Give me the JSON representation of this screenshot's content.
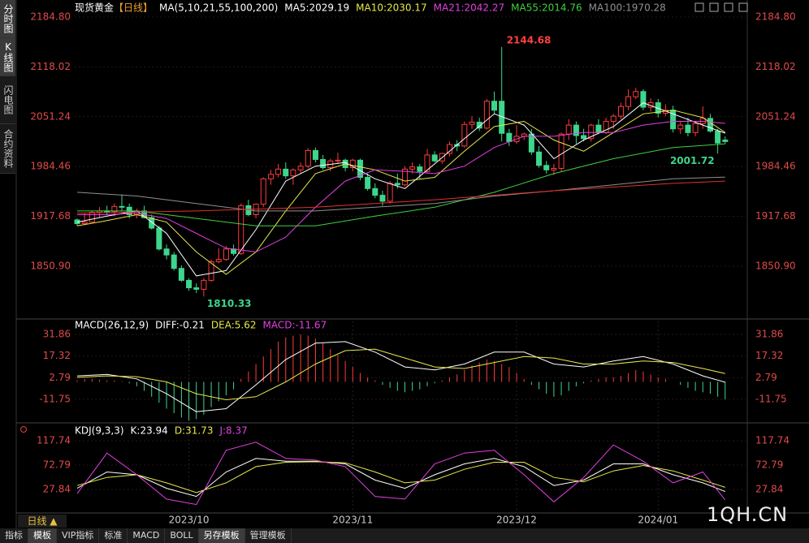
{
  "sidebar": [
    "分时图",
    "K线图",
    "闪电图",
    "合约资料"
  ],
  "toolbar": [
    "指标",
    "模板",
    "VIP指标",
    "标准",
    "MACD",
    "BOLL",
    "另存模板",
    "管理模板"
  ],
  "period_tab": "日线 ▲",
  "watermark": "1QH.CN",
  "chart_data": [
    {
      "type": "candlestick",
      "title": "现货黄金",
      "period": "【日线】",
      "indicator": "MA(5,10,21,55,100,200)",
      "up_color": "#ff3b3b",
      "down_color": "#3dd68c",
      "ylim": [
        1781.3,
        2202.2
      ],
      "yticks": [
        {
          "value": 2184.8,
          "label": "2184.80"
        },
        2118.02,
        2051.24,
        1984.46,
        1917.68,
        {
          "value": 1850.9,
          "label": "1850.90"
        }
      ],
      "x_labels": [
        {
          "index": 15,
          "label": "2023/10"
        },
        {
          "index": 37,
          "label": "2023/11"
        },
        {
          "index": 59,
          "label": "2023/12"
        },
        {
          "index": 78,
          "label": "2024/01"
        }
      ],
      "candles": [
        [
          1913,
          1915,
          1905,
          1908
        ],
        [
          1908,
          1922,
          1906,
          1910
        ],
        [
          1910,
          1925,
          1908,
          1923
        ],
        [
          1923,
          1930,
          1916,
          1925
        ],
        [
          1925,
          1932,
          1920,
          1924
        ],
        [
          1924,
          1935,
          1918,
          1931
        ],
        [
          1931,
          1947,
          1925,
          1930
        ],
        [
          1930,
          1935,
          1915,
          1920
        ],
        [
          1920,
          1928,
          1915,
          1925
        ],
        [
          1925,
          1932,
          1915,
          1916
        ],
        [
          1916,
          1920,
          1900,
          1902
        ],
        [
          1902,
          1905,
          1872,
          1874
        ],
        [
          1874,
          1880,
          1860,
          1866
        ],
        [
          1866,
          1870,
          1845,
          1848
        ],
        [
          1848,
          1852,
          1830,
          1832
        ],
        [
          1832,
          1835,
          1818,
          1822
        ],
        [
          1822,
          1828,
          1815,
          1820
        ],
        [
          1820,
          1835,
          1810.33,
          1832
        ],
        [
          1832,
          1860,
          1830,
          1857
        ],
        [
          1857,
          1875,
          1855,
          1860
        ],
        [
          1860,
          1878,
          1858,
          1874
        ],
        [
          1874,
          1880,
          1865,
          1868
        ],
        [
          1868,
          1935,
          1866,
          1932
        ],
        [
          1932,
          1940,
          1918,
          1920
        ],
        [
          1920,
          1935,
          1915,
          1934
        ],
        [
          1934,
          1970,
          1930,
          1968
        ],
        [
          1968,
          1980,
          1960,
          1974
        ],
        [
          1974,
          1988,
          1970,
          1981
        ],
        [
          1981,
          1990,
          1968,
          1972
        ],
        [
          1972,
          1982,
          1960,
          1980
        ],
        [
          1980,
          1990,
          1975,
          1985
        ],
        [
          1985,
          2009,
          1982,
          2006
        ],
        [
          2006,
          2010,
          1990,
          1994
        ],
        [
          1994,
          2000,
          1980,
          1983
        ],
        [
          1983,
          1995,
          1978,
          1992
        ],
        [
          1992,
          2003,
          1988,
          1993
        ],
        [
          1993,
          1995,
          1978,
          1983
        ],
        [
          1983,
          1995,
          1978,
          1993
        ],
        [
          1993,
          1995,
          1966,
          1970
        ],
        [
          1970,
          1975,
          1952,
          1955
        ],
        [
          1955,
          1962,
          1942,
          1946
        ],
        [
          1946,
          1952,
          1932,
          1938
        ],
        [
          1938,
          1965,
          1935,
          1962
        ],
        [
          1962,
          1975,
          1955,
          1960
        ],
        [
          1960,
          1985,
          1958,
          1981
        ],
        [
          1981,
          1990,
          1975,
          1984
        ],
        [
          1984,
          1988,
          1968,
          1978
        ],
        [
          1978,
          2008,
          1976,
          2000
        ],
        [
          2000,
          2005,
          1990,
          1992
        ],
        [
          1992,
          2003,
          1988,
          2002
        ],
        [
          2002,
          2018,
          1998,
          2014
        ],
        [
          2014,
          2020,
          2005,
          2012
        ],
        [
          2012,
          2045,
          2010,
          2041
        ],
        [
          2041,
          2052,
          2035,
          2044
        ],
        [
          2044,
          2050,
          2032,
          2036
        ],
        [
          2036,
          2075,
          2034,
          2072
        ],
        [
          2072,
          2085,
          2055,
          2060
        ],
        [
          2072,
          2144.68,
          2018,
          2029
        ],
        [
          2029,
          2035,
          2012,
          2018
        ],
        [
          2018,
          2040,
          2015,
          2025
        ],
        [
          2025,
          2030,
          2020,
          2028
        ],
        [
          2028,
          2035,
          2000,
          2004
        ],
        [
          2004,
          2012,
          1983,
          1986
        ],
        [
          1986,
          1992,
          1975,
          1980
        ],
        [
          1980,
          1988,
          1973,
          1982
        ],
        [
          1982,
          2030,
          1978,
          2028
        ],
        [
          2028,
          2048,
          2020,
          2040
        ],
        [
          2040,
          2045,
          2015,
          2026
        ],
        [
          2026,
          2035,
          2018,
          2022
        ],
        [
          2022,
          2042,
          2018,
          2040
        ],
        [
          2040,
          2048,
          2028,
          2030
        ],
        [
          2030,
          2050,
          2028,
          2045
        ],
        [
          2045,
          2055,
          2035,
          2052
        ],
        [
          2052,
          2070,
          2048,
          2065
        ],
        [
          2065,
          2088,
          2060,
          2078
        ],
        [
          2078,
          2090,
          2075,
          2085
        ],
        [
          2085,
          2088,
          2060,
          2064
        ],
        [
          2064,
          2076,
          2058,
          2070
        ],
        [
          2070,
          2075,
          2050,
          2056
        ],
        [
          2056,
          2068,
          2052,
          2060
        ],
        [
          2060,
          2066,
          2030,
          2035
        ],
        [
          2035,
          2045,
          2028,
          2040
        ],
        [
          2040,
          2050,
          2025,
          2030
        ],
        [
          2030,
          2045,
          2025,
          2042
        ],
        [
          2042,
          2065,
          2035,
          2049
        ],
        [
          2049,
          2055,
          2030,
          2032
        ],
        [
          2032,
          2035,
          2001.72,
          2016
        ],
        [
          2020,
          2025,
          2015,
          2018
        ]
      ],
      "lines": [
        {
          "label": "MA5:2029.19",
          "color": "#ffffff",
          "x": [
            0,
            4,
            8,
            12,
            16,
            20,
            24,
            28,
            32,
            36,
            40,
            44,
            48,
            52,
            56,
            60,
            64,
            68,
            72,
            76,
            80,
            84,
            87
          ],
          "values": [
            1910,
            1918,
            1925,
            1895,
            1838,
            1845,
            1900,
            1965,
            1985,
            1990,
            1968,
            1955,
            1988,
            2022,
            2055,
            2040,
            1995,
            2020,
            2038,
            2070,
            2055,
            2040,
            2029.19
          ]
        },
        {
          "label": "MA10:2030.17",
          "color": "#e8e84a",
          "x": [
            0,
            4,
            8,
            12,
            16,
            20,
            24,
            28,
            32,
            36,
            40,
            44,
            48,
            52,
            56,
            60,
            64,
            68,
            72,
            76,
            80,
            84,
            87
          ],
          "values": [
            1905,
            1912,
            1920,
            1910,
            1870,
            1840,
            1870,
            1925,
            1975,
            1988,
            1980,
            1965,
            1970,
            2005,
            2038,
            2045,
            2020,
            2005,
            2030,
            2055,
            2060,
            2050,
            2030.17
          ]
        },
        {
          "label": "MA21:2042.27",
          "color": "#e040e0",
          "x": [
            0,
            4,
            8,
            12,
            16,
            20,
            24,
            28,
            32,
            36,
            40,
            44,
            48,
            52,
            56,
            60,
            64,
            68,
            72,
            76,
            80,
            84,
            87
          ],
          "values": [
            1920,
            1920,
            1922,
            1915,
            1895,
            1875,
            1870,
            1890,
            1930,
            1965,
            1980,
            1978,
            1975,
            1985,
            2010,
            2025,
            2025,
            2030,
            2030,
            2040,
            2045,
            2045,
            2042.27
          ]
        },
        {
          "label": "MA55:2014.76",
          "color": "#40d040",
          "x": [
            0,
            8,
            16,
            24,
            32,
            40,
            48,
            56,
            64,
            72,
            80,
            87
          ],
          "values": [
            1925,
            1925,
            1915,
            1905,
            1905,
            1918,
            1930,
            1950,
            1975,
            1995,
            2010,
            2014.76
          ]
        },
        {
          "label": "MA100:1970.28",
          "color": "#909090",
          "x": [
            0,
            8,
            16,
            24,
            32,
            40,
            48,
            56,
            64,
            72,
            80,
            87
          ],
          "values": [
            1950,
            1945,
            1935,
            1925,
            1925,
            1930,
            1935,
            1945,
            1952,
            1960,
            1968,
            1970.28
          ]
        },
        {
          "color": "#e03030",
          "x": [
            0,
            16,
            32,
            48,
            64,
            80,
            87
          ],
          "values": [
            1922,
            1925,
            1930,
            1940,
            1952,
            1962,
            1965
          ]
        }
      ]
    },
    {
      "type": "macd",
      "title": "MACD(26,12,9)",
      "histogram_label": "MACD:-11.67",
      "histogram_label_color": "#e040e0",
      "up_color": "#ff3b3b",
      "down_color": "#3dd68c",
      "ylim": [
        -27,
        40.6
      ],
      "yticks": [
        31.86,
        17.32,
        2.79,
        -11.75
      ],
      "histogram": [
        1,
        2,
        2,
        1.5,
        1,
        1,
        0.5,
        -1,
        -3,
        -6,
        -10,
        -14,
        -18,
        -21,
        -24,
        -26,
        -25,
        -22,
        -17,
        -13,
        -9,
        -5,
        2,
        7,
        12,
        17,
        22,
        27,
        30,
        31,
        32,
        31,
        29,
        26,
        22,
        18,
        14,
        10,
        6,
        3,
        1,
        -2,
        -4,
        -6,
        -7,
        -6,
        -5,
        -3,
        -1,
        1,
        3,
        5,
        8,
        11,
        13,
        15,
        14,
        12,
        10,
        6,
        2,
        -2,
        -5,
        -8,
        -10,
        -9,
        -6,
        -3,
        -1,
        1,
        2,
        3,
        3,
        4,
        6,
        8,
        7,
        5,
        3,
        2,
        0,
        -2,
        -4,
        -6,
        -7,
        -8,
        -10,
        -11.67
      ],
      "lines": [
        {
          "label": "DIFF:-0.21",
          "color": "#ffffff",
          "x": [
            0,
            4,
            8,
            12,
            16,
            20,
            24,
            28,
            32,
            36,
            40,
            44,
            48,
            52,
            56,
            60,
            64,
            68,
            72,
            76,
            80,
            84,
            87
          ],
          "values": [
            4,
            5,
            2,
            -8,
            -20,
            -18,
            -2,
            15,
            26,
            27,
            20,
            10,
            8,
            12,
            20,
            20,
            12,
            10,
            14,
            17,
            12,
            4,
            -0.21
          ]
        },
        {
          "label": "DEA:5.62",
          "color": "#e8e84a",
          "x": [
            0,
            4,
            8,
            12,
            16,
            20,
            24,
            28,
            32,
            36,
            40,
            44,
            48,
            52,
            56,
            60,
            64,
            68,
            72,
            76,
            80,
            84,
            87
          ],
          "values": [
            3,
            4,
            3.5,
            0,
            -8,
            -12,
            -10,
            0,
            12,
            21,
            22,
            16,
            10,
            9,
            13,
            17,
            16,
            12,
            12,
            14,
            13,
            9,
            5.62
          ]
        }
      ]
    },
    {
      "type": "kdj",
      "title": "KDJ(9,3,3)",
      "ylim": [
        -12.6,
        140.2
      ],
      "yticks": [
        117.74,
        72.79,
        27.84
      ],
      "lines": [
        {
          "label": "K:23.94",
          "color": "#ffffff",
          "x": [
            0,
            4,
            8,
            12,
            16,
            20,
            24,
            28,
            32,
            36,
            40,
            44,
            48,
            52,
            56,
            60,
            64,
            68,
            72,
            76,
            80,
            84,
            87
          ],
          "values": [
            30,
            60,
            55,
            30,
            15,
            60,
            85,
            80,
            80,
            75,
            45,
            30,
            55,
            75,
            85,
            70,
            35,
            45,
            75,
            75,
            55,
            40,
            23.94
          ]
        },
        {
          "label": "D:31.73",
          "color": "#e8e84a",
          "x": [
            0,
            4,
            8,
            12,
            16,
            20,
            24,
            28,
            32,
            36,
            40,
            44,
            48,
            52,
            56,
            60,
            64,
            68,
            72,
            76,
            80,
            84,
            87
          ],
          "values": [
            35,
            50,
            55,
            40,
            22,
            40,
            70,
            78,
            79,
            77,
            60,
            40,
            45,
            65,
            78,
            78,
            50,
            42,
            62,
            72,
            62,
            45,
            31.73
          ]
        },
        {
          "label": "J:8.37",
          "color": "#e040e0",
          "x": [
            0,
            4,
            8,
            12,
            16,
            20,
            24,
            28,
            32,
            36,
            40,
            44,
            48,
            52,
            56,
            60,
            64,
            68,
            72,
            76,
            80,
            84,
            87
          ],
          "values": [
            20,
            95,
            55,
            10,
            0,
            100,
            115,
            85,
            82,
            70,
            15,
            10,
            75,
            95,
            100,
            55,
            5,
            50,
            110,
            80,
            40,
            60,
            8.37
          ]
        }
      ]
    }
  ]
}
